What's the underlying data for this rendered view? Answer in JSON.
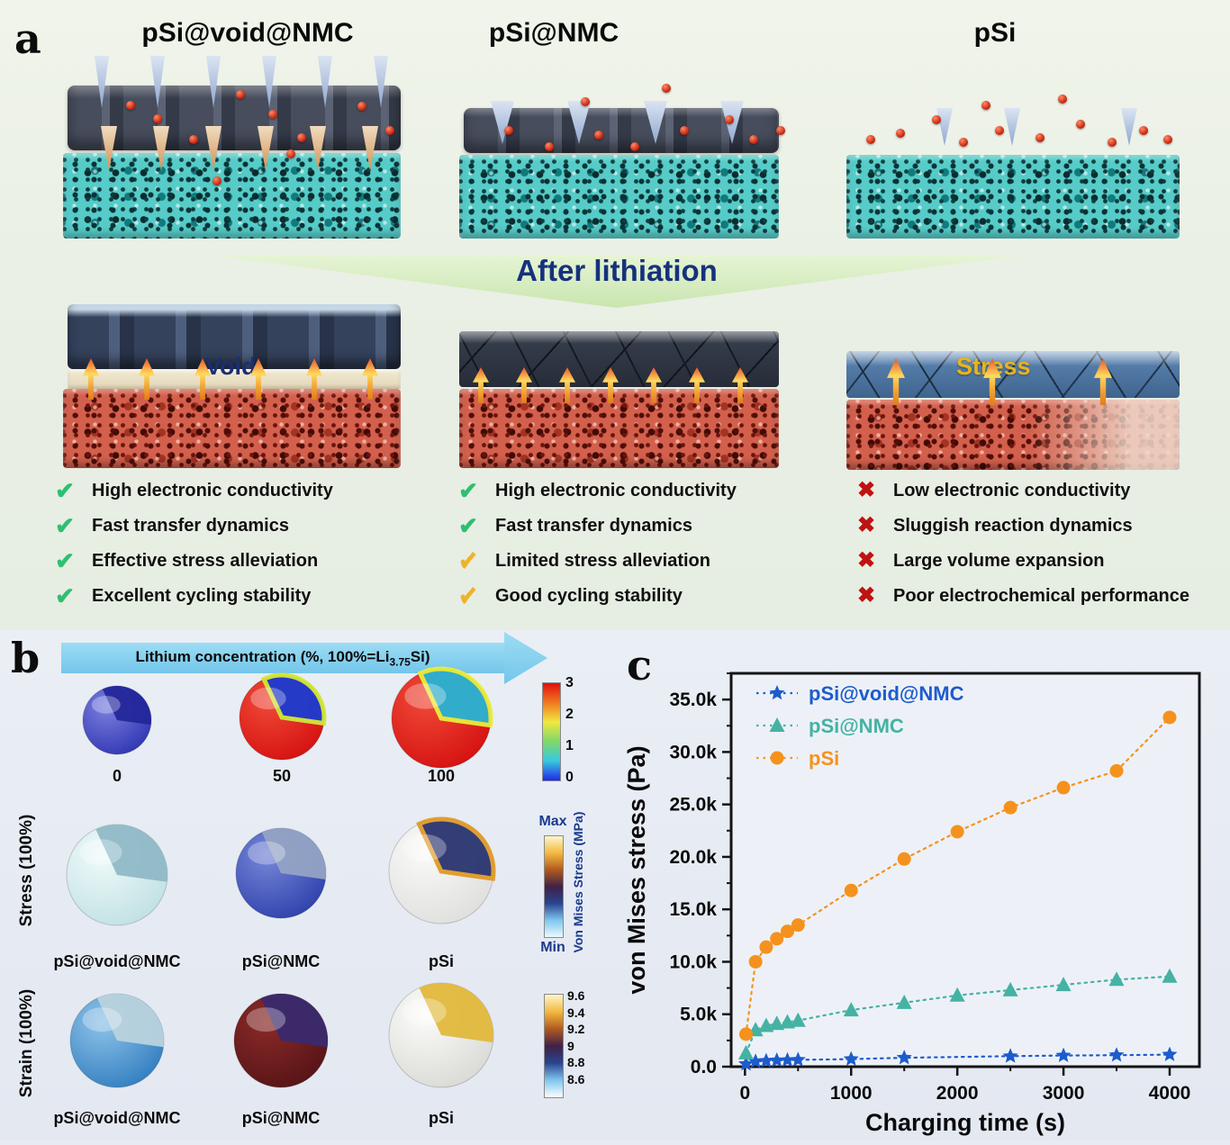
{
  "panel_a": {
    "label": "a",
    "banner": "After lithiation",
    "columns": [
      {
        "title": "pSi@void@NMC",
        "overlay_label": "Void",
        "items": [
          {
            "icon": "check-green",
            "text": "High electronic conductivity"
          },
          {
            "icon": "check-green",
            "text": "Fast transfer dynamics"
          },
          {
            "icon": "check-green",
            "text": "Effective stress alleviation"
          },
          {
            "icon": "check-green",
            "text": "Excellent cycling stability"
          }
        ]
      },
      {
        "title": "pSi@NMC",
        "overlay_label": "",
        "items": [
          {
            "icon": "check-green",
            "text": "High electronic conductivity"
          },
          {
            "icon": "check-green",
            "text": "Fast  transfer dynamics"
          },
          {
            "icon": "check-yellow",
            "text": "Limited stress alleviation"
          },
          {
            "icon": "check-yellow",
            "text": "Good cycling stability"
          }
        ]
      },
      {
        "title": "pSi",
        "overlay_label": "Stress",
        "items": [
          {
            "icon": "cross-red",
            "text": "Low electronic conductivity"
          },
          {
            "icon": "cross-red",
            "text": "Sluggish reaction dynamics"
          },
          {
            "icon": "cross-red",
            "text": "Large volume expansion"
          },
          {
            "icon": "cross-red",
            "text": "Poor electrochemical performance"
          }
        ]
      }
    ]
  },
  "panel_b": {
    "label": "b",
    "arrow": {
      "pre": "Lithium concentration (%, 100%=Li",
      "sub": "3.75",
      "post": "Si)"
    },
    "row1": {
      "sphere_labels": [
        "0",
        "50",
        "100"
      ],
      "spheres": [
        {
          "outer": "#2e34b0",
          "hi": "#7b80e0",
          "core": "#23279a"
        },
        {
          "outer": "#d40f0f",
          "hi": "#f04a38",
          "core": "#1b3bd0",
          "rim": "#cfe838"
        },
        {
          "outer": "#d40f0f",
          "hi": "#f04a38",
          "core": "#28b4d4",
          "rim": "#e8ee3a"
        }
      ],
      "colorbar": {
        "ticks": [
          "3",
          "2",
          "1",
          "0"
        ],
        "gradient": [
          "#e01010",
          "#f07820",
          "#f0e840",
          "#7ed86a",
          "#38c8e0",
          "#2028e8"
        ]
      }
    },
    "row2": {
      "axis_label": "Stress (100%)",
      "sphere_labels": [
        "pSi@void@NMC",
        "pSi@NMC",
        "pSi"
      ],
      "spheres": [
        {
          "outer": "#bfe0e2",
          "hi": "#f0fafa",
          "core": "#8fb9c6"
        },
        {
          "outer": "#2c3faa",
          "hi": "#7787d8",
          "core": "#93a3c4"
        },
        {
          "outer": "#dededc",
          "hi": "#fafaf8",
          "core": "#2a3470",
          "rim": "#e09a28"
        }
      ],
      "colorbar": {
        "max_label": "Max",
        "min_label": "Min",
        "title": "Von Mises Stress (MPa)",
        "gradient": [
          "#fdf5cd",
          "#f3b93f",
          "#b05a20",
          "#3f2147",
          "#2a4490",
          "#7ec6ee",
          "#eafaff"
        ]
      }
    },
    "row3": {
      "axis_label": "Strain (100%)",
      "sphere_labels": [
        "pSi@void@NMC",
        "pSi@NMC",
        "pSi"
      ],
      "spheres": [
        {
          "outer": "#2f7cc0",
          "hi": "#8fc4e8",
          "core": "#b9d2dd"
        },
        {
          "outer": "#551316",
          "hi": "#8a2a28",
          "core": "#3a2a6e"
        },
        {
          "outer": "#d8d8d4",
          "hi": "#fcfcfa",
          "core": "#e2b83c"
        }
      ],
      "colorbar": {
        "ticks": [
          "9.6",
          "9.4",
          "9.2",
          "9",
          "8.8",
          "8.6"
        ],
        "gradient": [
          "#fdf5cd",
          "#f3b93f",
          "#b05a20",
          "#3f2147",
          "#2a4490",
          "#7ec6ee",
          "#ffffff"
        ]
      }
    }
  },
  "panel_c": {
    "label": "c"
  },
  "chart_data": {
    "type": "scatter",
    "title": "",
    "xlabel": "Charging time (s)",
    "ylabel": "von Mises stress (Pa)",
    "xlim": [
      -130,
      4280
    ],
    "ylim": [
      0,
      37500
    ],
    "x_ticks": [
      0,
      1000,
      2000,
      3000,
      4000
    ],
    "x_tick_labels": [
      "0",
      "1000",
      "2000",
      "3000",
      "4000"
    ],
    "y_ticks": [
      0,
      5000,
      10000,
      15000,
      20000,
      25000,
      30000,
      35000
    ],
    "y_tick_labels": [
      "0.0",
      "5.0k",
      "10.0k",
      "15.0k",
      "20.0k",
      "25.0k",
      "30.0k",
      "35.0k"
    ],
    "grid": false,
    "legend_position": "top-left",
    "series": [
      {
        "name": "pSi@void@NMC",
        "color": "#1d5ccd",
        "marker": "star",
        "line": "dotted",
        "x": [
          10,
          100,
          200,
          300,
          400,
          500,
          1000,
          1500,
          2500,
          3000,
          3500,
          4000
        ],
        "y": [
          250,
          500,
          550,
          600,
          620,
          650,
          720,
          850,
          1000,
          1060,
          1100,
          1150
        ]
      },
      {
        "name": "pSi@NMC",
        "color": "#45b2a4",
        "marker": "triangle",
        "line": "dotted",
        "x": [
          10,
          100,
          200,
          300,
          400,
          500,
          1000,
          1500,
          2000,
          2500,
          3000,
          3500,
          4000
        ],
        "y": [
          1300,
          3500,
          3900,
          4100,
          4250,
          4400,
          5400,
          6100,
          6800,
          7300,
          7800,
          8300,
          8600
        ]
      },
      {
        "name": "pSi",
        "color": "#f5921e",
        "marker": "circle",
        "line": "dotted",
        "x": [
          10,
          100,
          200,
          300,
          400,
          500,
          1000,
          1500,
          2000,
          2500,
          3000,
          3500,
          4000
        ],
        "y": [
          3100,
          10000,
          11400,
          12200,
          12900,
          13500,
          16800,
          19800,
          22400,
          24700,
          26600,
          28200,
          33300
        ]
      }
    ]
  }
}
